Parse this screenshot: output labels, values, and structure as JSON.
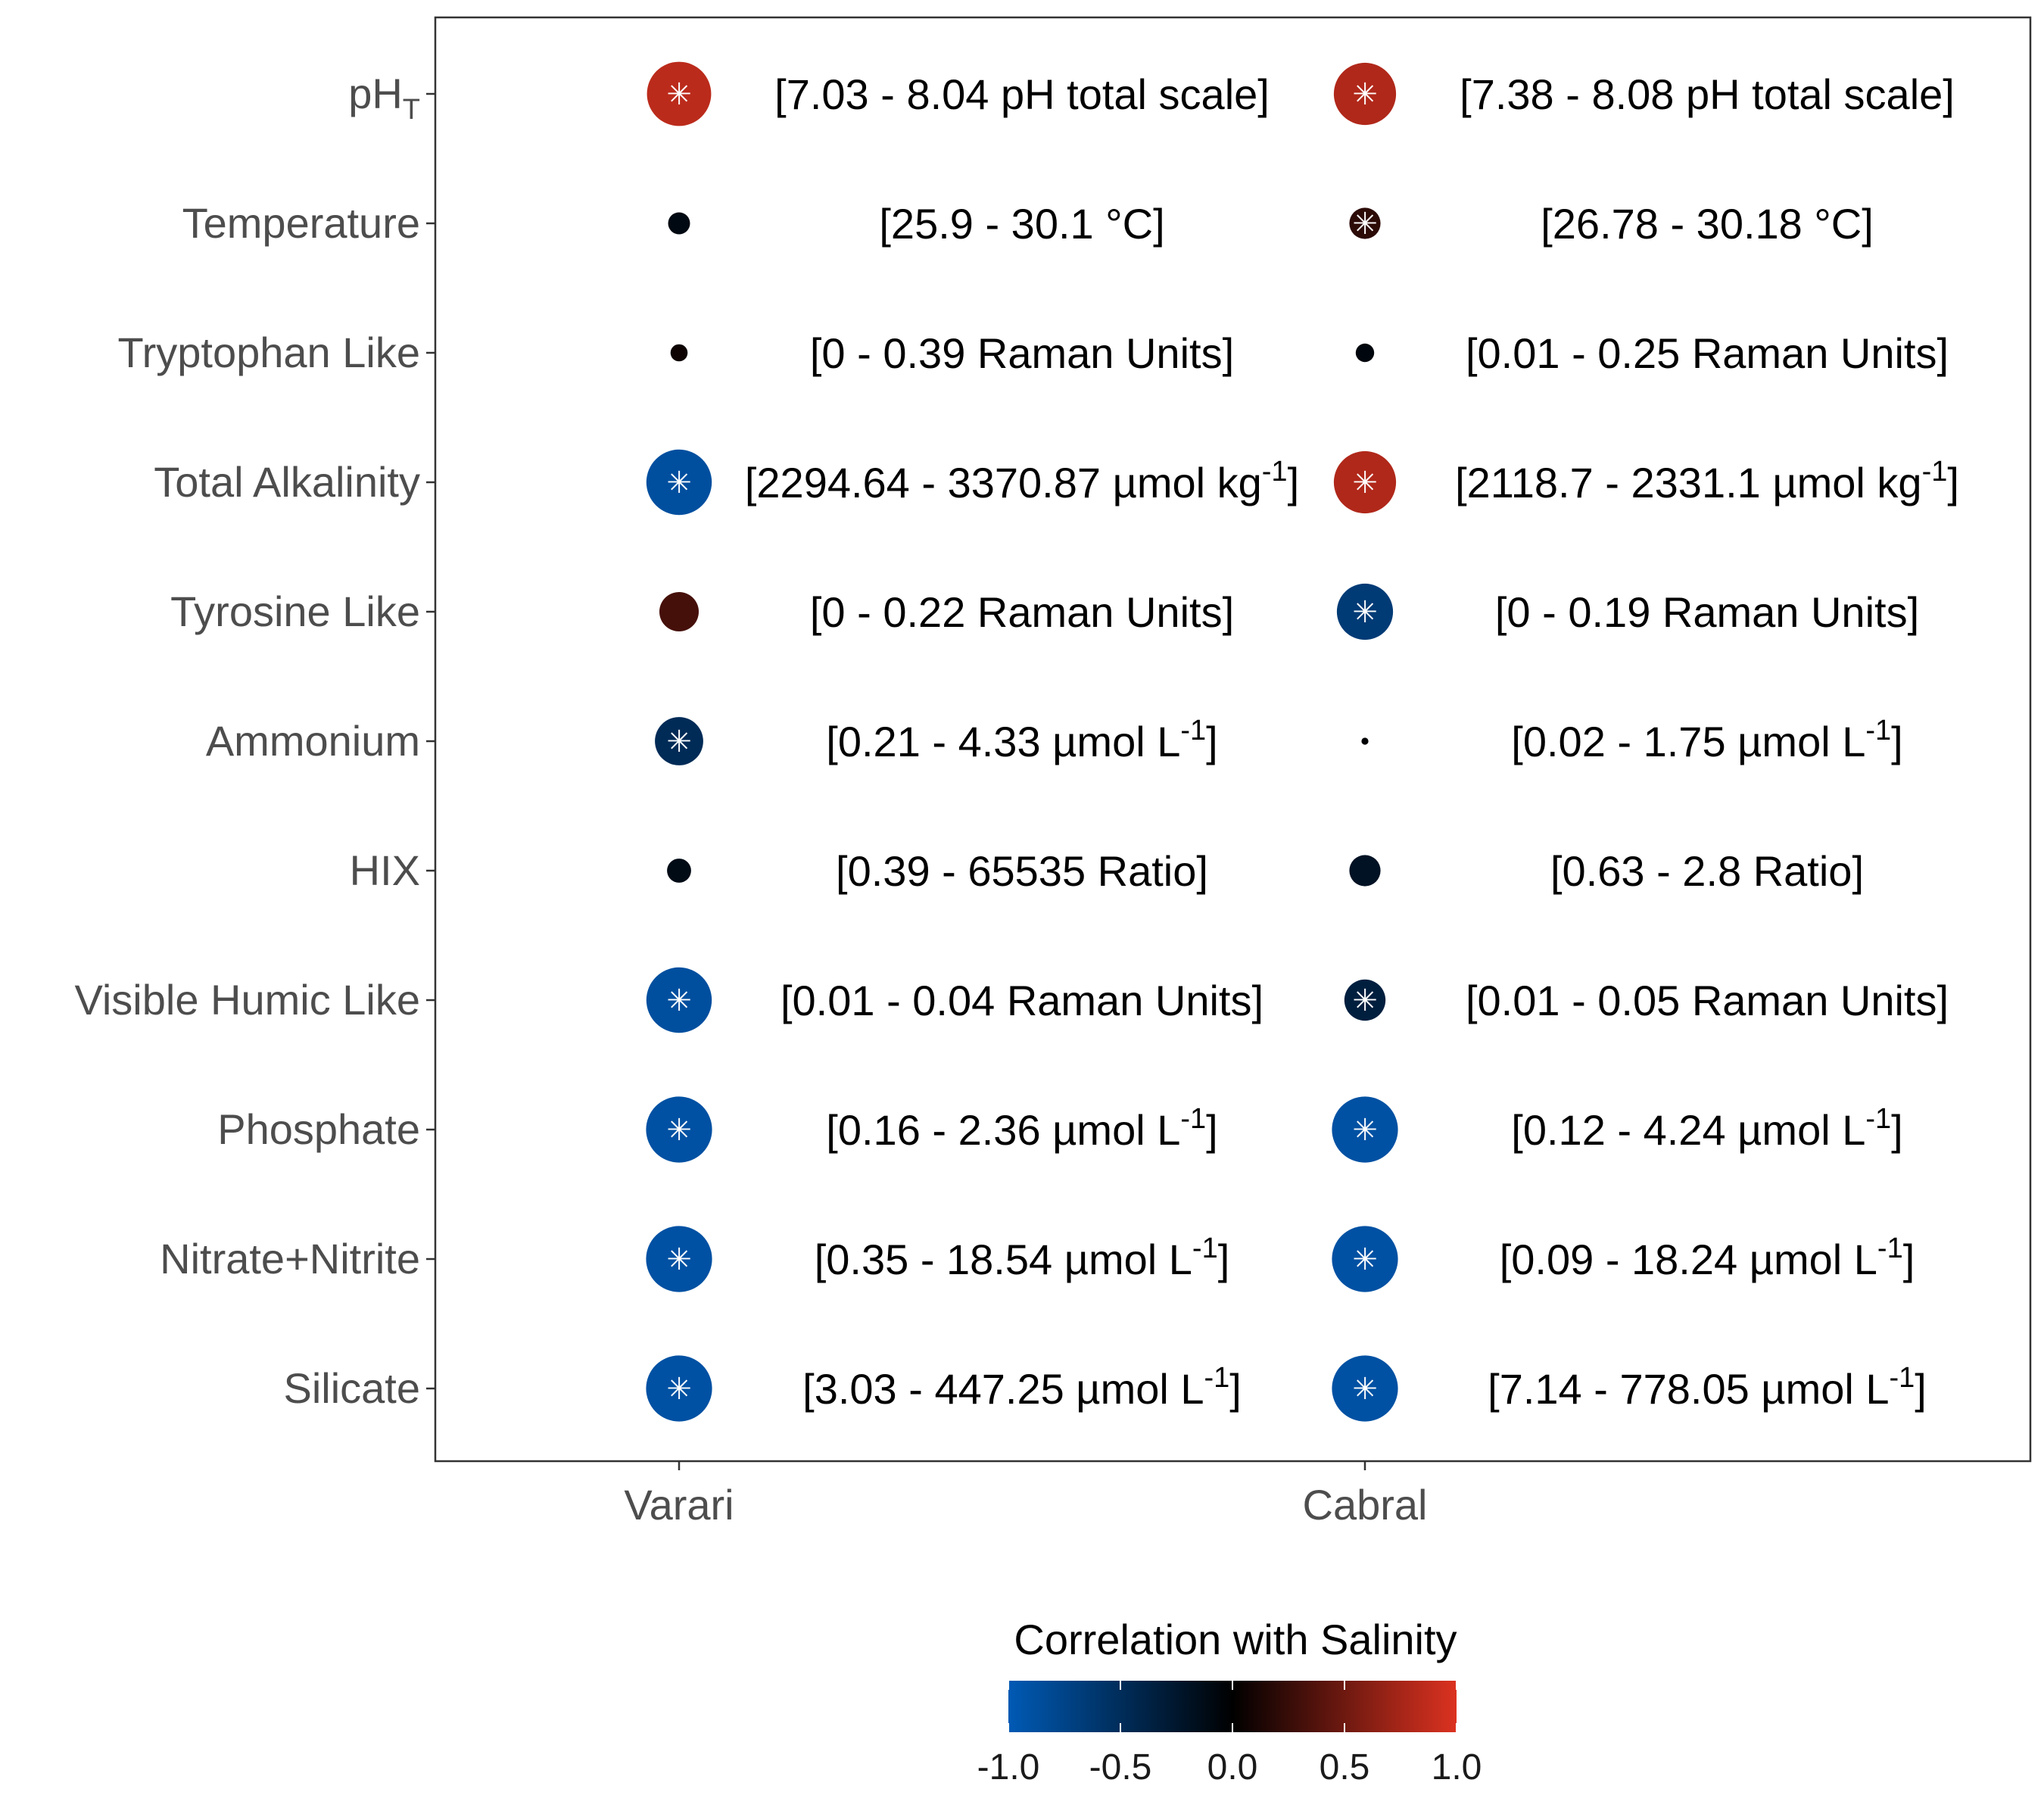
{
  "chart_data": {
    "type": "scatter",
    "categories": [
      "Varari",
      "Cabral"
    ],
    "rows": [
      {
        "label": "pH",
        "label_sub": "T",
        "values": [
          {
            "corr": 0.85,
            "sig": true,
            "range": "[7.03 - 8.04 pH total scale]"
          },
          {
            "corr": 0.8,
            "sig": true,
            "range": "[7.38 - 8.08 pH total scale]"
          }
        ]
      },
      {
        "label": "Temperature",
        "label_sub": "",
        "values": [
          {
            "corr": -0.1,
            "sig": false,
            "range": "[25.9 - 30.1 °C]"
          },
          {
            "corr": 0.2,
            "sig": true,
            "range": "[26.78 - 30.18 °C]"
          }
        ]
      },
      {
        "label": "Tryptophan Like",
        "label_sub": "",
        "values": [
          {
            "corr": 0.06,
            "sig": false,
            "range": "[0 - 0.39 Raman Units]"
          },
          {
            "corr": -0.07,
            "sig": false,
            "range": "[0.01 - 0.25 Raman Units]"
          }
        ]
      },
      {
        "label": "Total Alkalinity",
        "label_sub": "",
        "values": [
          {
            "corr": -0.88,
            "sig": true,
            "range": "[2294.64 - 3370.87 µmol kg",
            "unit_sup": "-1",
            "tail": "]"
          },
          {
            "corr": 0.8,
            "sig": true,
            "range": "[2118.7 - 2331.1 µmol kg",
            "unit_sup": "-1",
            "tail": "]"
          }
        ]
      },
      {
        "label": "Tyrosine Like",
        "label_sub": "",
        "values": [
          {
            "corr": 0.32,
            "sig": false,
            "range": "[0 - 0.22 Raman Units]"
          },
          {
            "corr": -0.65,
            "sig": true,
            "range": "[0 - 0.19 Raman Units]"
          }
        ]
      },
      {
        "label": "Ammonium",
        "label_sub": "",
        "values": [
          {
            "corr": -0.48,
            "sig": true,
            "range": "[0.21 - 4.33 µmol L",
            "unit_sup": "-1",
            "tail": "]"
          },
          {
            "corr": -0.01,
            "sig": false,
            "range": "[0.02 - 1.75 µmol L",
            "unit_sup": "-1",
            "tail": "]"
          }
        ]
      },
      {
        "label": "HIX",
        "label_sub": "",
        "values": [
          {
            "corr": -0.12,
            "sig": false,
            "range": "[0.39 - 65535 Ratio]"
          },
          {
            "corr": -0.2,
            "sig": false,
            "range": "[0.63 - 2.8 Ratio]"
          }
        ]
      },
      {
        "label": "Visible Humic Like",
        "label_sub": "",
        "values": [
          {
            "corr": -0.88,
            "sig": true,
            "range": "[0.01 - 0.04 Raman Units]"
          },
          {
            "corr": -0.35,
            "sig": true,
            "range": "[0.01 - 0.05 Raman Units]"
          }
        ]
      },
      {
        "label": "Phosphate",
        "label_sub": "",
        "values": [
          {
            "corr": -0.9,
            "sig": true,
            "range": "[0.16 - 2.36 µmol L",
            "unit_sup": "-1",
            "tail": "]"
          },
          {
            "corr": -0.9,
            "sig": true,
            "range": "[0.12 - 4.24 µmol L",
            "unit_sup": "-1",
            "tail": "]"
          }
        ]
      },
      {
        "label": "Nitrate+Nitrite",
        "label_sub": "",
        "values": [
          {
            "corr": -0.9,
            "sig": true,
            "range": "[0.35 - 18.54 µmol L",
            "unit_sup": "-1",
            "tail": "]"
          },
          {
            "corr": -0.9,
            "sig": true,
            "range": "[0.09 - 18.24 µmol L",
            "unit_sup": "-1",
            "tail": "]"
          }
        ]
      },
      {
        "label": "Silicate",
        "label_sub": "",
        "values": [
          {
            "corr": -0.9,
            "sig": true,
            "range": "[3.03 - 447.25 µmol L",
            "unit_sup": "-1",
            "tail": "]"
          },
          {
            "corr": -0.9,
            "sig": true,
            "range": "[7.14 - 778.05 µmol L",
            "unit_sup": "-1",
            "tail": "]"
          }
        ]
      }
    ],
    "significance_marker": "✳",
    "legend": {
      "title": "Correlation with Salinity",
      "ticks": [
        "-1.0",
        "-0.5",
        "0.0",
        "0.5",
        "1.0"
      ],
      "tick_values": [
        -1.0,
        -0.5,
        0.0,
        0.5,
        1.0
      ],
      "range": [
        -1,
        1
      ],
      "colors": {
        "low": "#005AB5",
        "mid": "#000000",
        "high": "#DC3220"
      },
      "placement": "bottom"
    },
    "grid": false
  }
}
